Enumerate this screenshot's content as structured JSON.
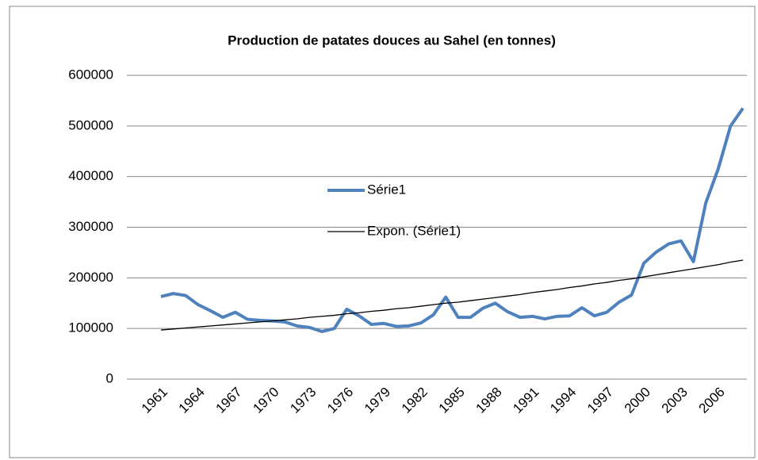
{
  "chart_data": {
    "type": "line",
    "title": "Production de patates douces au Sahel (en tonnes)",
    "categories": [
      "1961",
      null,
      null,
      "1964",
      null,
      null,
      "1967",
      null,
      null,
      "1970",
      null,
      null,
      "1973",
      null,
      null,
      "1976",
      null,
      null,
      "1979",
      null,
      null,
      "1982",
      null,
      null,
      "1985",
      null,
      null,
      "1988",
      null,
      null,
      "1991",
      null,
      null,
      "1994",
      null,
      null,
      "1997",
      null,
      null,
      "2000",
      null,
      null,
      "2003",
      null,
      null,
      "2006",
      null,
      null
    ],
    "series": [
      {
        "name": "Série1",
        "color": "#4f81bd",
        "values": [
          163000,
          169000,
          165000,
          147000,
          135000,
          122000,
          132000,
          118000,
          116000,
          115000,
          113000,
          105000,
          102000,
          94000,
          100000,
          138000,
          125000,
          108000,
          110000,
          104000,
          105000,
          111000,
          127000,
          162000,
          122000,
          122000,
          140000,
          150000,
          133000,
          122000,
          124000,
          119000,
          124000,
          125000,
          141000,
          125000,
          132000,
          152000,
          166000,
          229000,
          251000,
          267000,
          273000,
          232000,
          348000,
          415000,
          500000,
          535000
        ]
      },
      {
        "name": "Expon. (Série1)",
        "color": "#000000",
        "values": [
          97000,
          99000,
          101000,
          103000,
          105000,
          107000,
          109000,
          111000,
          113000,
          115000,
          117000,
          119000,
          122000,
          124000,
          126000,
          129000,
          131000,
          134000,
          136000,
          139000,
          141000,
          144000,
          147000,
          150000,
          152000,
          155000,
          158000,
          161000,
          164000,
          167000,
          171000,
          174000,
          177000,
          181000,
          184000,
          188000,
          191000,
          195000,
          198000,
          202000,
          206000,
          210000,
          214000,
          218000,
          222000,
          226000,
          231000,
          235000
        ]
      }
    ],
    "ylim": [
      0,
      600000
    ],
    "yticks": [
      0,
      100000,
      200000,
      300000,
      400000,
      500000,
      600000
    ],
    "grid": true
  }
}
